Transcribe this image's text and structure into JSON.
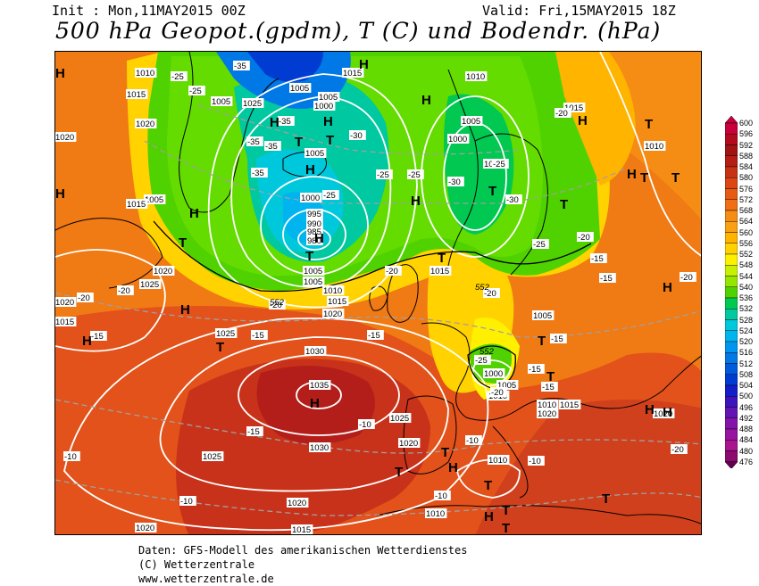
{
  "header": {
    "init": "Init : Mon,11MAY2015 00Z",
    "valid": "Valid: Fri,15MAY2015 18Z",
    "title": "500 hPa Geopot.(gpdm), T (C) und Bodendr. (hPa)"
  },
  "footer": {
    "line1": "Daten: GFS-Modell des amerikanischen Wetterdienstes",
    "line2": "(C) Wetterzentrale",
    "line3": "www.wetterzentrale.de"
  },
  "colorbar": {
    "levels": [
      "600",
      "596",
      "592",
      "588",
      "584",
      "580",
      "576",
      "572",
      "568",
      "564",
      "560",
      "556",
      "552",
      "548",
      "544",
      "540",
      "536",
      "532",
      "528",
      "524",
      "520",
      "516",
      "512",
      "508",
      "504",
      "500",
      "496",
      "492",
      "488",
      "484",
      "480",
      "476"
    ],
    "colors": [
      "#c8003c",
      "#b40a1e",
      "#a01414",
      "#b41e14",
      "#c83214",
      "#dc4614",
      "#e65a14",
      "#f06e14",
      "#f58c14",
      "#faa014",
      "#ffb400",
      "#ffd200",
      "#fff000",
      "#c8f000",
      "#96e600",
      "#50d200",
      "#00c850",
      "#00c8a0",
      "#00c8dc",
      "#00b4f0",
      "#0096f0",
      "#0078e6",
      "#005adc",
      "#003cd2",
      "#141ec8",
      "#3c14be",
      "#6414b4",
      "#8214aa",
      "#9614a0",
      "#aa148c",
      "#8c0a6e",
      "#640050"
    ]
  },
  "map": {
    "pressure_labels": [
      {
        "v": "1010"
      },
      {
        "v": "1015"
      },
      {
        "v": "1020"
      },
      {
        "v": "1005"
      },
      {
        "v": "1025"
      },
      {
        "v": "1005"
      },
      {
        "v": "1005"
      },
      {
        "v": "1000"
      },
      {
        "v": "1015"
      },
      {
        "v": "1010"
      },
      {
        "v": "1005"
      },
      {
        "v": "1000"
      },
      {
        "v": "1000"
      },
      {
        "v": "1005"
      },
      {
        "v": "1015"
      },
      {
        "v": "1010"
      },
      {
        "v": "1020"
      },
      {
        "v": "1005"
      },
      {
        "v": "1015"
      },
      {
        "v": "1000"
      },
      {
        "v": "995"
      },
      {
        "v": "990"
      },
      {
        "v": "985"
      },
      {
        "v": "980"
      },
      {
        "v": "1005"
      },
      {
        "v": "1020"
      },
      {
        "v": "1025"
      },
      {
        "v": "1005"
      },
      {
        "v": "1010"
      },
      {
        "v": "1015"
      },
      {
        "v": "1020"
      },
      {
        "v": "1015"
      },
      {
        "v": "1020"
      },
      {
        "v": "1025"
      },
      {
        "v": "1030"
      },
      {
        "v": "1035"
      },
      {
        "v": "1015"
      },
      {
        "v": "1005"
      },
      {
        "v": "1000"
      },
      {
        "v": "1005"
      },
      {
        "v": "1010"
      },
      {
        "v": "1010"
      },
      {
        "v": "1020"
      },
      {
        "v": "1025"
      },
      {
        "v": "1030"
      },
      {
        "v": "1020"
      },
      {
        "v": "1025"
      },
      {
        "v": "1020"
      },
      {
        "v": "1010"
      },
      {
        "v": "1020"
      },
      {
        "v": "1015"
      },
      {
        "v": "1010"
      },
      {
        "v": "1015"
      },
      {
        "v": "1015"
      },
      {
        "v": "1020"
      }
    ],
    "temp_labels": [
      "-25",
      "-25",
      "-35",
      "-35",
      "-35",
      "-30",
      "-35",
      "-35",
      "-25",
      "-25",
      "-30",
      "-25",
      "-20",
      "-30",
      "-25",
      "-25",
      "-20",
      "-15",
      "-20",
      "-20",
      "-20",
      "-15",
      "-15",
      "-15",
      "-15",
      "-20",
      "-25",
      "-15",
      "-20",
      "-15",
      "-15",
      "-10",
      "-15",
      "-10",
      "-10",
      "-10",
      "-10",
      "-10",
      "-15",
      "-20",
      "-20",
      "-20"
    ],
    "contour_labels": [
      "552",
      "552",
      "552"
    ],
    "markers": [
      "H",
      "H",
      "H",
      "H",
      "T",
      "H",
      "H",
      "T",
      "T",
      "H",
      "T",
      "H",
      "H",
      "H",
      "T",
      "T",
      "H",
      "T",
      "T",
      "T",
      "H",
      "H",
      "T",
      "T",
      "H",
      "T",
      "H",
      "H",
      "T",
      "T",
      "H",
      "T",
      "H",
      "T",
      "T",
      "H",
      "T",
      "T",
      "H"
    ]
  }
}
